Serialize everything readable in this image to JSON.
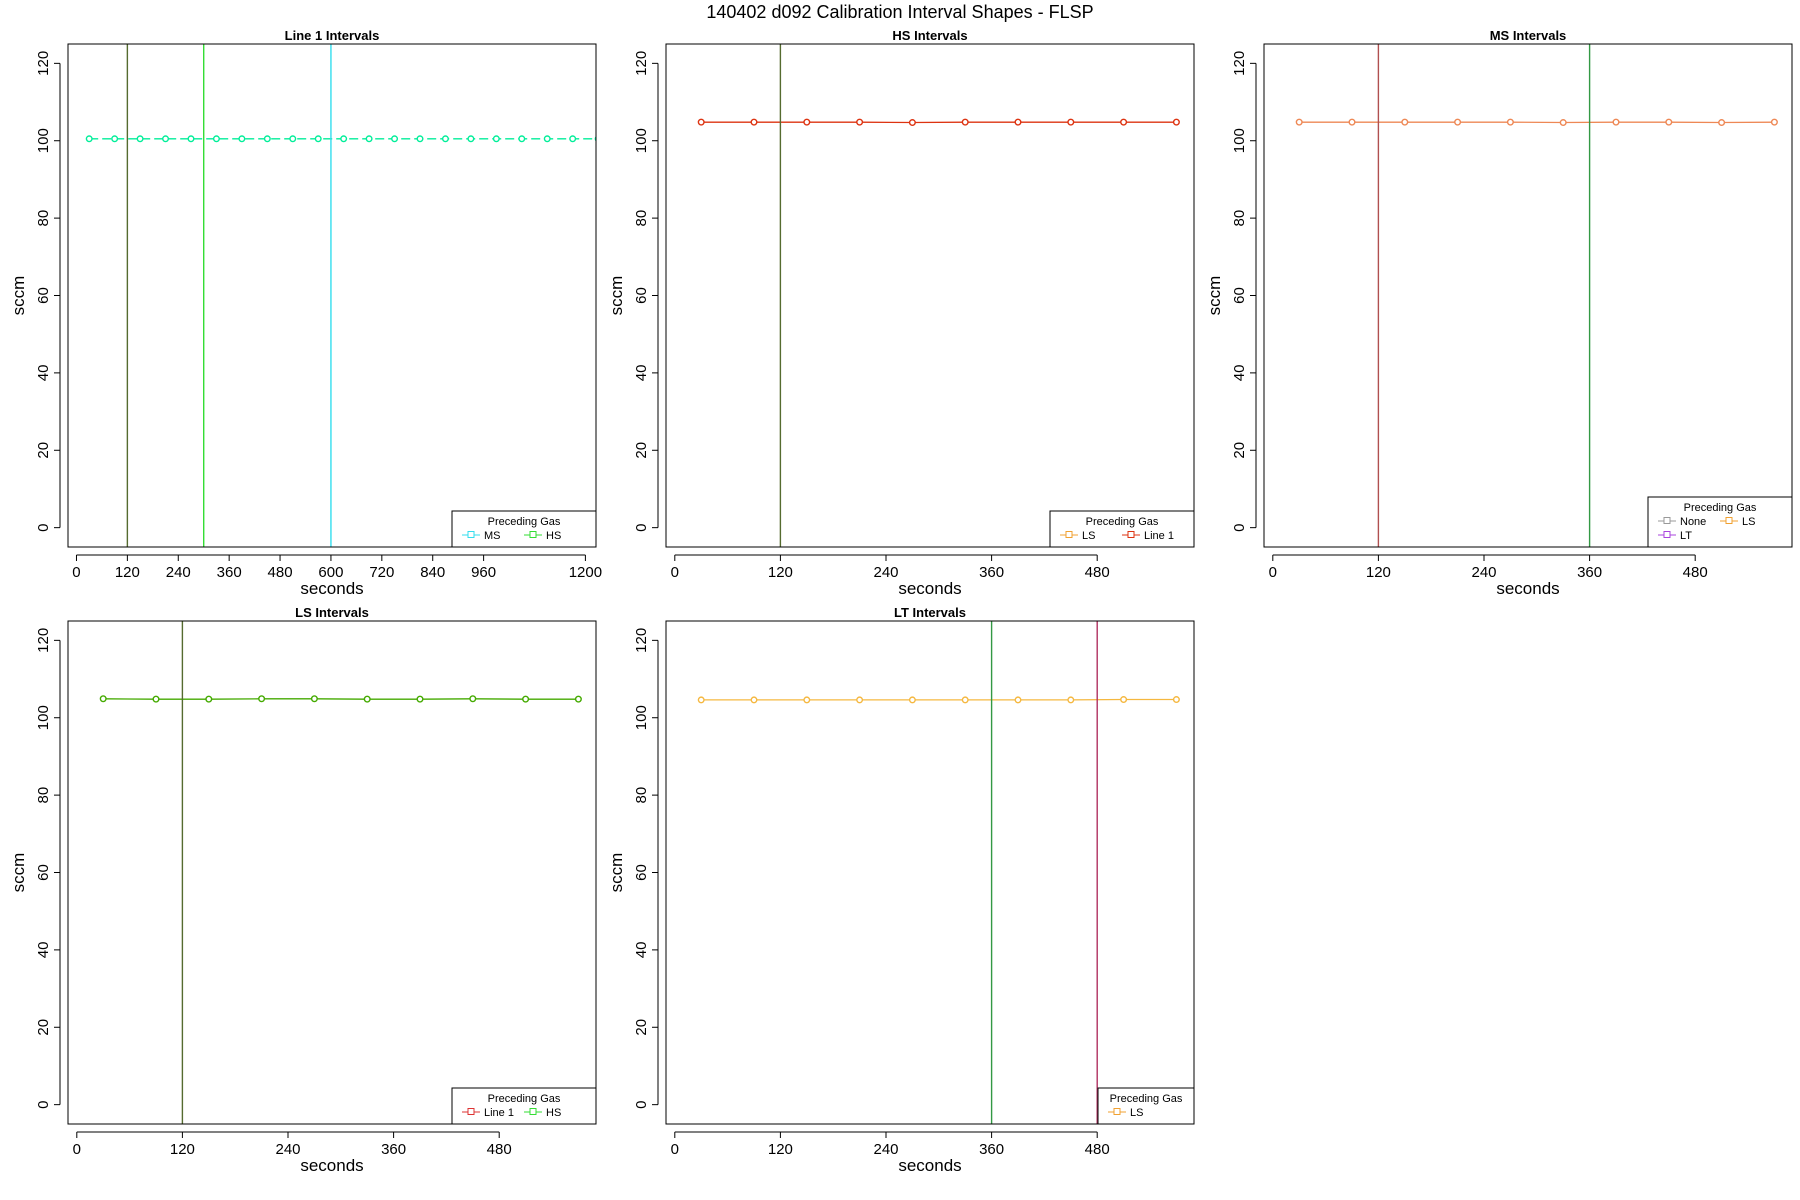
{
  "page": {
    "title": "140402   d092   Calibration Interval Shapes - FLSP"
  },
  "chart_data": [
    {
      "type": "line",
      "title": "Line 1 Intervals",
      "xlabel": "seconds",
      "ylabel": "sccm",
      "xlim": [
        -20,
        1225
      ],
      "ylim": [
        -5,
        125
      ],
      "xticks": [
        0,
        120,
        240,
        360,
        480,
        600,
        720,
        840,
        960,
        1200
      ],
      "yticks": [
        0,
        20,
        40,
        60,
        80,
        100,
        120
      ],
      "series": [
        {
          "color": "#00ee99",
          "dashed": true,
          "x": [
            30,
            90,
            150,
            210,
            270,
            330,
            390,
            450,
            510,
            570,
            630,
            690,
            750,
            810,
            870,
            930,
            990,
            1050,
            1110,
            1170,
            1230
          ],
          "y": [
            100.5,
            100.5,
            100.5,
            100.5,
            100.5,
            100.5,
            100.5,
            100.5,
            100.5,
            100.5,
            100.5,
            100.5,
            100.5,
            100.5,
            100.5,
            100.5,
            100.5,
            100.5,
            100.5,
            100.5,
            100.5
          ]
        }
      ],
      "vlines": [
        {
          "x": 120,
          "color": "#556b2f"
        },
        {
          "x": 300,
          "color": "#33dd33"
        },
        {
          "x": 600,
          "color": "#33ddee"
        }
      ],
      "legend": {
        "title": "Preceding Gas",
        "placement": "bottom-right",
        "entries": [
          {
            "label": "MS",
            "color": "#33ddee"
          },
          {
            "label": "HS",
            "color": "#33dd33"
          }
        ]
      }
    },
    {
      "type": "line",
      "title": "HS Intervals",
      "xlabel": "seconds",
      "ylabel": "sccm",
      "xlim": [
        -10,
        590
      ],
      "ylim": [
        -5,
        125
      ],
      "xticks": [
        0,
        120,
        240,
        360,
        480
      ],
      "yticks": [
        0,
        20,
        40,
        60,
        80,
        100,
        120
      ],
      "series": [
        {
          "color": "#dd3311",
          "dashed": false,
          "x": [
            30,
            90,
            150,
            210,
            270,
            330,
            390,
            450,
            510,
            570
          ],
          "y": [
            104.8,
            104.8,
            104.8,
            104.8,
            104.7,
            104.8,
            104.8,
            104.8,
            104.8,
            104.8
          ]
        }
      ],
      "vlines": [
        {
          "x": 120,
          "color": "#556b2f"
        }
      ],
      "legend": {
        "title": "Preceding Gas",
        "placement": "bottom-right",
        "entries": [
          {
            "label": "LS",
            "color": "#f0a030"
          },
          {
            "label": "Line 1",
            "color": "#dd3311"
          }
        ]
      }
    },
    {
      "type": "line",
      "title": "MS Intervals",
      "xlabel": "seconds",
      "ylabel": "sccm",
      "xlim": [
        -10,
        590
      ],
      "ylim": [
        -5,
        125
      ],
      "xticks": [
        0,
        120,
        240,
        360,
        480
      ],
      "yticks": [
        0,
        20,
        40,
        60,
        80,
        100,
        120
      ],
      "series": [
        {
          "color": "#ee8855",
          "dashed": false,
          "x": [
            30,
            90,
            150,
            210,
            270,
            330,
            390,
            450,
            510,
            570
          ],
          "y": [
            104.8,
            104.8,
            104.8,
            104.8,
            104.8,
            104.7,
            104.8,
            104.8,
            104.7,
            104.8
          ]
        }
      ],
      "vlines": [
        {
          "x": 120,
          "color": "#b05050"
        },
        {
          "x": 360,
          "color": "#339944"
        }
      ],
      "legend": {
        "title": "Preceding Gas",
        "placement": "bottom-right",
        "entries": [
          {
            "label": "None",
            "color": "#999999"
          },
          {
            "label": "LS",
            "color": "#f0a030"
          },
          {
            "label": "LT",
            "color": "#aa44dd"
          }
        ]
      }
    },
    {
      "type": "line",
      "title": "LS Intervals",
      "xlabel": "seconds",
      "ylabel": "sccm",
      "xlim": [
        -10,
        590
      ],
      "ylim": [
        -5,
        125
      ],
      "xticks": [
        0,
        120,
        240,
        360,
        480
      ],
      "yticks": [
        0,
        20,
        40,
        60,
        80,
        100,
        120
      ],
      "series": [
        {
          "color": "#44aa00",
          "dashed": false,
          "x": [
            30,
            90,
            150,
            210,
            270,
            330,
            390,
            450,
            510,
            570
          ],
          "y": [
            104.9,
            104.8,
            104.8,
            104.9,
            104.9,
            104.8,
            104.8,
            104.9,
            104.8,
            104.8
          ]
        }
      ],
      "vlines": [
        {
          "x": 120,
          "color": "#556b2f"
        }
      ],
      "legend": {
        "title": "Preceding Gas",
        "placement": "bottom-right",
        "entries": [
          {
            "label": "Line 1",
            "color": "#dd3333"
          },
          {
            "label": "HS",
            "color": "#33dd33"
          }
        ]
      }
    },
    {
      "type": "line",
      "title": "LT Intervals",
      "xlabel": "seconds",
      "ylabel": "sccm",
      "xlim": [
        -10,
        590
      ],
      "ylim": [
        -5,
        125
      ],
      "xticks": [
        0,
        120,
        240,
        360,
        480
      ],
      "yticks": [
        0,
        20,
        40,
        60,
        80,
        100,
        120
      ],
      "series": [
        {
          "color": "#f5b840",
          "dashed": false,
          "x": [
            30,
            90,
            150,
            210,
            270,
            330,
            390,
            450,
            510,
            570
          ],
          "y": [
            104.6,
            104.6,
            104.6,
            104.6,
            104.6,
            104.6,
            104.6,
            104.6,
            104.7,
            104.7
          ]
        }
      ],
      "vlines": [
        {
          "x": 360,
          "color": "#339944"
        },
        {
          "x": 480,
          "color": "#b03060"
        }
      ],
      "legend": {
        "title": "Preceding Gas",
        "placement": "bottom-right",
        "entries": [
          {
            "label": "LS",
            "color": "#f0a030"
          }
        ]
      }
    }
  ]
}
